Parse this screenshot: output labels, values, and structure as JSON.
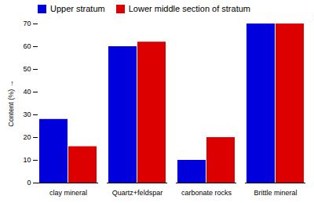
{
  "chart_data": {
    "type": "bar",
    "categories": [
      "clay mineral",
      "Quartz+feldspar",
      "carbonate rocks",
      "Brittle mineral"
    ],
    "series": [
      {
        "name": "Upper stratum",
        "color": "#0000dd",
        "values": [
          28,
          60,
          10,
          70
        ]
      },
      {
        "name": "Lower middle section of stratum",
        "color": "#dd0000",
        "values": [
          16,
          62,
          20,
          70
        ]
      }
    ],
    "ylabel": "Content (%)",
    "ylim": [
      0,
      70
    ],
    "yticks": [
      0,
      10,
      20,
      30,
      40,
      50,
      60,
      70
    ],
    "legend": "upper left"
  }
}
